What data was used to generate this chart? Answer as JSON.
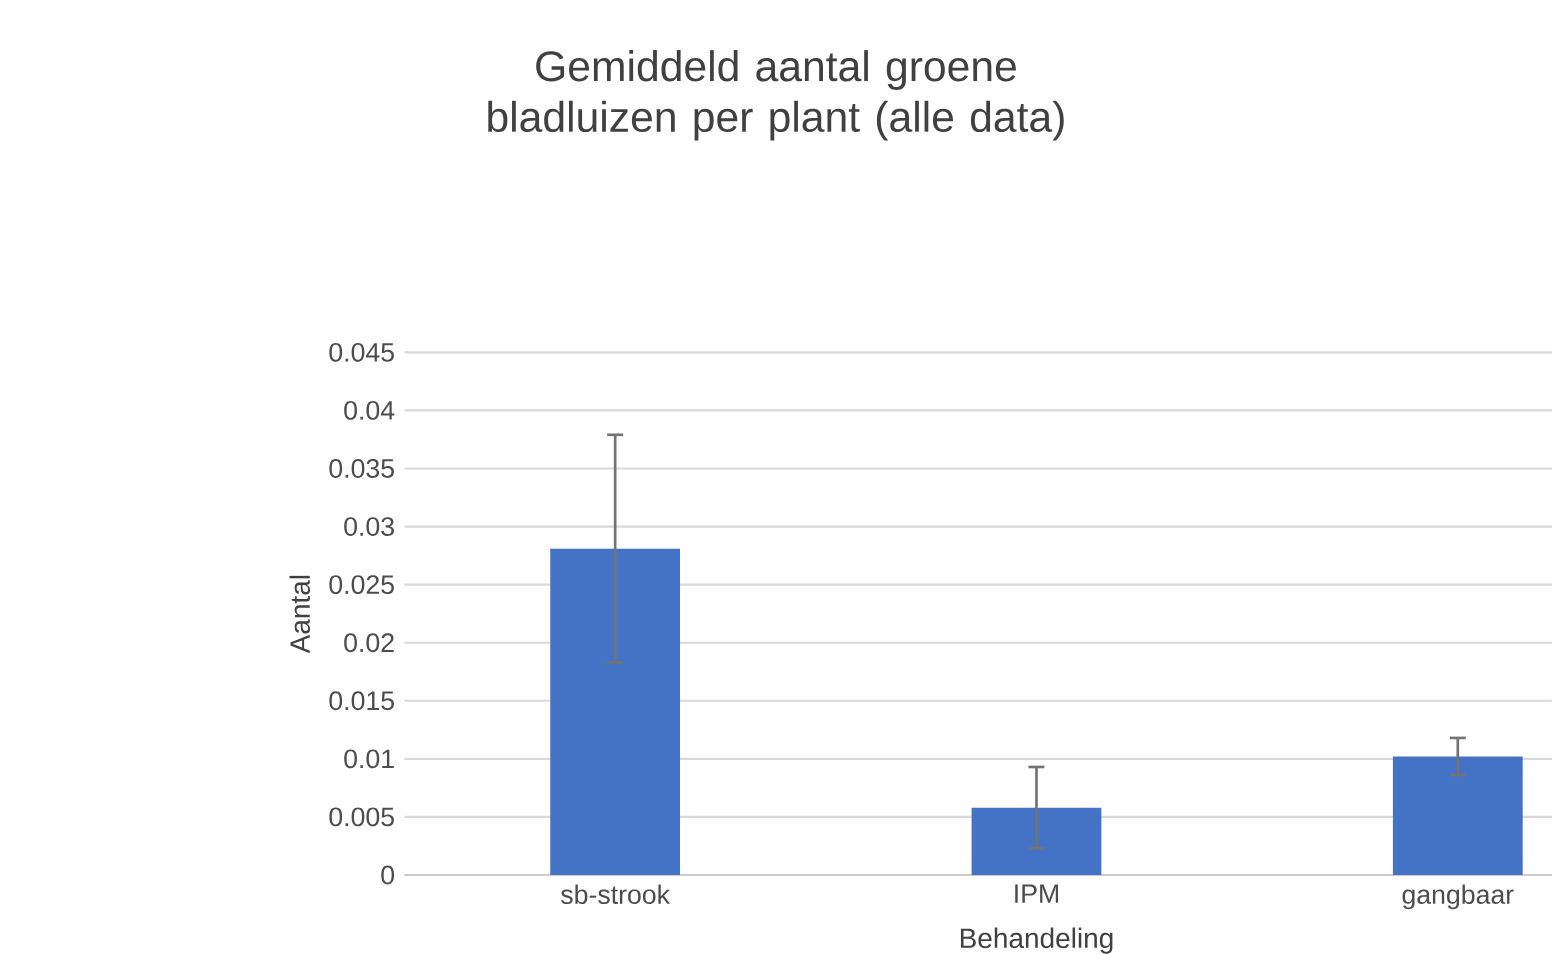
{
  "chart_data": {
    "type": "bar",
    "title": "Gemiddeld aantal groene bladluizen per plant (alle data)",
    "xlabel": "Behandeling",
    "ylabel": "Aantal",
    "categories": [
      "sb-strook",
      "IPM",
      "gangbaar"
    ],
    "values": [
      0.0281,
      0.0058,
      0.0102
    ],
    "errors": [
      0.0098,
      0.0035,
      0.0016
    ],
    "color": "#4472c4",
    "ylim": [
      0,
      0.045
    ],
    "yticks": [
      {
        "value": 0,
        "label": "0"
      },
      {
        "value": 0.005,
        "label": "0.005"
      },
      {
        "value": 0.01,
        "label": "0.01"
      },
      {
        "value": 0.015,
        "label": "0.015"
      },
      {
        "value": 0.02,
        "label": "0.02"
      },
      {
        "value": 0.025,
        "label": "0.025"
      },
      {
        "value": 0.03,
        "label": "0.03"
      },
      {
        "value": 0.035,
        "label": "0.035"
      },
      {
        "value": 0.04,
        "label": "0.04"
      },
      {
        "value": 0.045,
        "label": "0.045"
      }
    ],
    "grid": "y"
  }
}
